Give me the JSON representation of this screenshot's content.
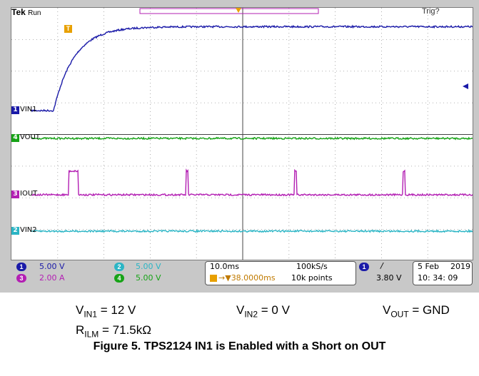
{
  "scope": {
    "brand": "Tek",
    "run_state": "Run",
    "trigger_state": "Trig?",
    "trigger_marker": "T"
  },
  "channels": [
    {
      "id": "1",
      "label": "VIN1",
      "color": "#1a1aa8"
    },
    {
      "id": "4",
      "label": "VOUT",
      "color": "#17a317"
    },
    {
      "id": "3",
      "label": "IOUT",
      "color": "#b31fb3"
    },
    {
      "id": "2",
      "label": "VIN2",
      "color": "#2bb5c5"
    }
  ],
  "settings": {
    "ch1_scale": "5.00 V",
    "ch3_scale": "2.00 A",
    "ch2_scale": "5.00 V",
    "ch4_scale": "5.00 V",
    "timebase": "10.0ms",
    "trigger_position": "38.0000ms",
    "sample_rate": "100kS/s",
    "record_length": "10k points",
    "trigger_channel": "1",
    "trigger_slope": "/",
    "trigger_level": "3.80 V",
    "date": "5 Feb",
    "year": "2019",
    "time": "10: 34: 09"
  },
  "captions": {
    "vin1": {
      "main": "V",
      "sub": "IN1",
      "rest": " = 12 V"
    },
    "vin2": {
      "main": "V",
      "sub": "IN2",
      "rest": " = 0 V"
    },
    "vout": {
      "main": "V",
      "sub": "OUT",
      "rest": " = GND"
    },
    "rilm": {
      "main": "R",
      "sub": "ILM",
      "rest": " = 71.5kΩ"
    }
  },
  "figure_caption": "Figure 5. TPS2124 IN1 is Enabled with a Short on OUT",
  "chart_data": {
    "type": "line",
    "x_unit": "ms",
    "xlim": [
      0,
      100
    ],
    "x_divisions": 10,
    "y_divisions": 8,
    "series": [
      {
        "name": "VIN1",
        "channel": "1",
        "unit": "V",
        "color": "#1a1aa8",
        "ramp_start_ms": 5,
        "ramp_end_ms": 17,
        "low_div": 0,
        "high_div": 2.65
      },
      {
        "name": "VOUT",
        "channel": "4",
        "unit": "V",
        "color": "#17a317",
        "level_div": 0
      },
      {
        "name": "IOUT",
        "channel": "3",
        "unit": "A",
        "color": "#b31fb3",
        "level_div": 0,
        "pulses": [
          {
            "t_ms": 8.5,
            "width_ms": 2.0,
            "height_div": 0.75
          },
          {
            "t_ms": 35,
            "width_ms": 0.4,
            "height_div": 0.75
          },
          {
            "t_ms": 59.5,
            "width_ms": 0.4,
            "height_div": 0.75
          },
          {
            "t_ms": 84,
            "width_ms": 0.4,
            "height_div": 0.75
          }
        ]
      },
      {
        "name": "VIN2",
        "channel": "2",
        "unit": "V",
        "color": "#2bb5c5",
        "level_div": 0
      }
    ]
  }
}
